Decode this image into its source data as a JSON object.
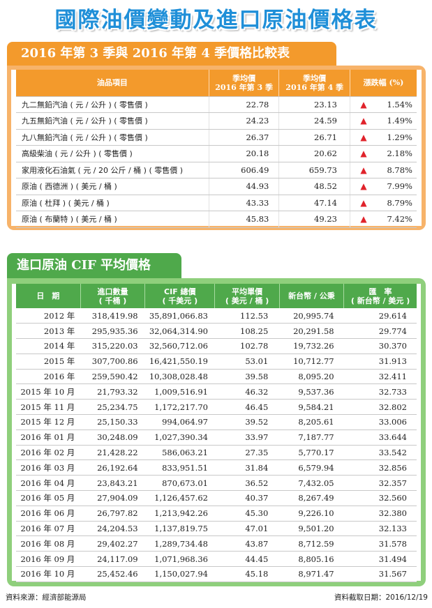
{
  "title": "國際油價變動及進口原油價格表",
  "section1": {
    "tab_title": "2016 年第 3 季與 2016 年第 4 季價格比較表",
    "headers": [
      "油品項目",
      "季均價\n2016 年第 3 季",
      "季均價\n2016 年第 4 季",
      "漲跌幅 (%)"
    ],
    "arrow_color": "#e0232b",
    "rows": [
      {
        "item": "九二無鉛汽油 ( 元 / 公升 ) ( 零售價 )",
        "q3": "22.78",
        "q4": "23.13",
        "dir": "up",
        "pct": "1.54%"
      },
      {
        "item": "九五無鉛汽油 ( 元 / 公升 ) ( 零售價 )",
        "q3": "24.23",
        "q4": "24.59",
        "dir": "up",
        "pct": "1.49%"
      },
      {
        "item": "九八無鉛汽油 ( 元 / 公升 ) ( 零售價 )",
        "q3": "26.37",
        "q4": "26.71",
        "dir": "up",
        "pct": "1.29%"
      },
      {
        "item": "高級柴油 ( 元 / 公升 ) ( 零售價 )",
        "q3": "20.18",
        "q4": "20.62",
        "dir": "up",
        "pct": "2.18%"
      },
      {
        "item": "家用液化石油氣 ( 元 / 20 公斤 / 桶 ) ( 零售價 )",
        "q3": "606.49",
        "q4": "659.73",
        "dir": "up",
        "pct": "8.78%"
      },
      {
        "item": "原油 ( 西德洲 ) ( 美元 / 桶 )",
        "q3": "44.93",
        "q4": "48.52",
        "dir": "up",
        "pct": "7.99%"
      },
      {
        "item": "原油 ( 杜拜 ) ( 美元 / 桶 )",
        "q3": "43.33",
        "q4": "47.14",
        "dir": "up",
        "pct": "8.79%"
      },
      {
        "item": "原油 ( 布蘭特 ) ( 美元 / 桶 )",
        "q3": "45.83",
        "q4": "49.23",
        "dir": "up",
        "pct": "7.42%"
      }
    ]
  },
  "section2": {
    "tab_title": "進口原油 CIF 平均價格",
    "headers": [
      "日　期",
      "進口數量\n( 千桶 )",
      "CIF 總價\n( 千美元 )",
      "平均單價\n( 美元 / 桶 )",
      "新台幣 / 公秉",
      "匯　率\n( 新台幣 / 美元 )"
    ],
    "rows": [
      [
        "2012 年",
        "318,419.98",
        "35,891,066.83",
        "112.53",
        "20,995.74",
        "29.614"
      ],
      [
        "2013 年",
        "295,935.36",
        "32,064,314.90",
        "108.25",
        "20,291.58",
        "29.774"
      ],
      [
        "2014 年",
        "315,220.03",
        "32,560,712.06",
        "102.78",
        "19,732.26",
        "30.370"
      ],
      [
        "2015 年",
        "307,700.86",
        "16,421,550.19",
        "53.01",
        "10,712.77",
        "31.913"
      ],
      [
        "2016 年",
        "259,590.42",
        "10,308,028.48",
        "39.58",
        "8,095.20",
        "32.411"
      ],
      [
        "2015 年 10 月",
        "21,793.32",
        "1,009,516.91",
        "46.32",
        "9,537.36",
        "32.733"
      ],
      [
        "2015 年 11 月",
        "25,234.75",
        "1,172,217.70",
        "46.45",
        "9,584.21",
        "32.802"
      ],
      [
        "2015 年 12 月",
        "25,150.33",
        "994,064.97",
        "39.52",
        "8,205.61",
        "33.006"
      ],
      [
        "2016 年 01 月",
        "30,248.09",
        "1,027,390.34",
        "33.97",
        "7,187.77",
        "33.644"
      ],
      [
        "2016 年 02 月",
        "21,428.22",
        "586,063.21",
        "27.35",
        "5,770.17",
        "33.542"
      ],
      [
        "2016 年 03 月",
        "26,192.64",
        "833,951.51",
        "31.84",
        "6,579.94",
        "32.856"
      ],
      [
        "2016 年 04 月",
        "23,843.21",
        "870,673.01",
        "36.52",
        "7,432.05",
        "32.357"
      ],
      [
        "2016 年 05 月",
        "27,904.09",
        "1,126,457.62",
        "40.37",
        "8,267.49",
        "32.560"
      ],
      [
        "2016 年 06 月",
        "26,797.82",
        "1,213,942.26",
        "45.30",
        "9,226.10",
        "32.380"
      ],
      [
        "2016 年 07 月",
        "24,204.53",
        "1,137,819.75",
        "47.01",
        "9,501.20",
        "32.133"
      ],
      [
        "2016 年 08 月",
        "29,402.27",
        "1,289,734.48",
        "43.87",
        "8,712.59",
        "31.578"
      ],
      [
        "2016 年 09 月",
        "24,117.09",
        "1,071,968.36",
        "44.45",
        "8,805.16",
        "31.494"
      ],
      [
        "2016 年 10 月",
        "25,452.46",
        "1,150,027.94",
        "45.18",
        "8,971.47",
        "31.567"
      ]
    ]
  },
  "footer": {
    "source": "資料來源：經濟部能源局",
    "date": "資料截取日期：2016/12/19"
  }
}
